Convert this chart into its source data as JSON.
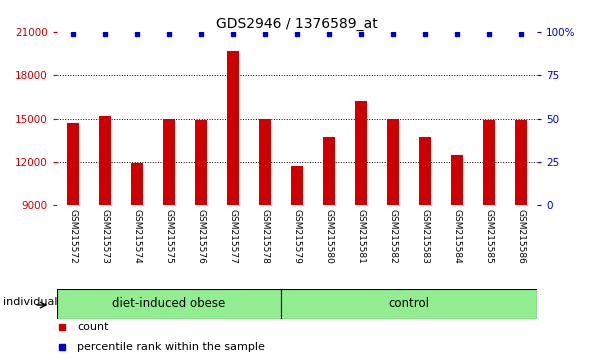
{
  "title": "GDS2946 / 1376589_at",
  "samples": [
    "GSM215572",
    "GSM215573",
    "GSM215574",
    "GSM215575",
    "GSM215576",
    "GSM215577",
    "GSM215578",
    "GSM215579",
    "GSM215580",
    "GSM215581",
    "GSM215582",
    "GSM215583",
    "GSM215584",
    "GSM215585",
    "GSM215586"
  ],
  "counts": [
    14700,
    15200,
    11900,
    15000,
    14900,
    19700,
    15000,
    11700,
    13700,
    16200,
    15000,
    13700,
    12500,
    14900,
    14900
  ],
  "group_boundary": 7,
  "group1_label": "diet-induced obese",
  "group2_label": "control",
  "group_color": "#90EE90",
  "ylim_left": [
    9000,
    21000
  ],
  "yticks_left": [
    9000,
    12000,
    15000,
    18000,
    21000
  ],
  "ylim_right": [
    0,
    100
  ],
  "yticks_right": [
    0,
    25,
    50,
    75,
    100
  ],
  "bar_color": "#CC0000",
  "dot_color": "#0000CC",
  "plot_bg_color": "#ffffff",
  "xticklabel_bg": "#d3d3d3",
  "grid_color": "#000000",
  "ylabel_left_color": "#CC0000",
  "ylabel_right_color": "#0000CC",
  "individual_label": "individual",
  "legend_count_label": "count",
  "legend_pct_label": "percentile rank within the sample",
  "title_fontsize": 10,
  "tick_fontsize": 7.5,
  "bar_width": 0.35
}
